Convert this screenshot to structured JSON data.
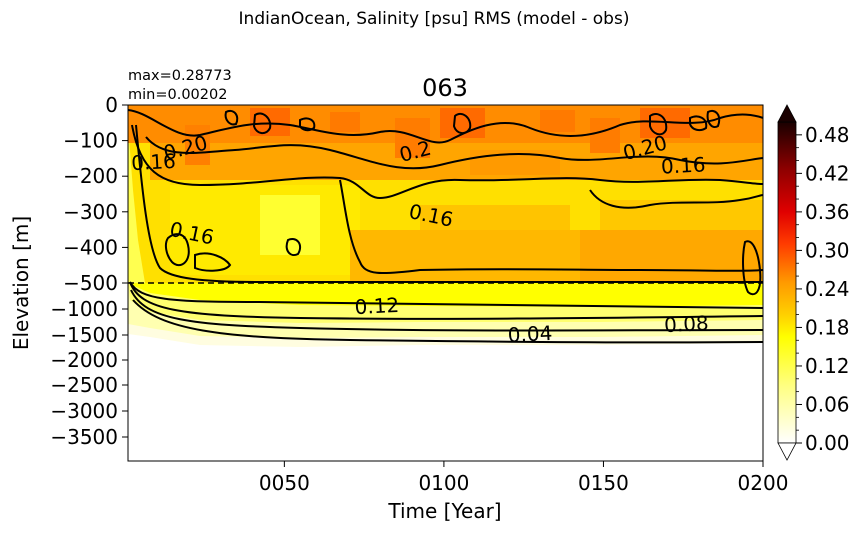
{
  "figure": {
    "suptitle": "IndianOcean, Salinity [psu] RMS (model - obs)",
    "title": "063",
    "max_text": "max=0.28773",
    "min_text": "min=0.00202"
  },
  "chart_data": {
    "type": "heatmap",
    "title": "063",
    "xlabel": "Time [Year]",
    "ylabel": "Elevation [m]",
    "xlim": [
      1,
      200
    ],
    "x_ticks": [
      {
        "value": 50,
        "label": "0050"
      },
      {
        "value": 100,
        "label": "0100"
      },
      {
        "value": 150,
        "label": "0150"
      },
      {
        "value": 200,
        "label": "0200"
      }
    ],
    "y_ticks_upper": [
      {
        "value": 0,
        "label": "0"
      },
      {
        "value": -100,
        "label": "−100"
      },
      {
        "value": -200,
        "label": "−200"
      },
      {
        "value": -300,
        "label": "−300"
      },
      {
        "value": -400,
        "label": "−400"
      },
      {
        "value": -500,
        "label": "−500"
      }
    ],
    "y_ticks_lower": [
      {
        "value": -1000,
        "label": "−1000"
      },
      {
        "value": -1500,
        "label": "−1500"
      },
      {
        "value": -2000,
        "label": "−2000"
      },
      {
        "value": -2500,
        "label": "−2500"
      },
      {
        "value": -3000,
        "label": "−3000"
      },
      {
        "value": -3500,
        "label": "−3500"
      }
    ],
    "upper_ylim": [
      -500,
      0
    ],
    "lower_ylim": [
      -4000,
      -500
    ],
    "split_depth": -500,
    "colorbar": {
      "vmin": 0.0,
      "vmax": 0.5,
      "colormap": "hot_r",
      "extend": "both",
      "ticks": [
        {
          "value": 0.0,
          "label": "0.00"
        },
        {
          "value": 0.06,
          "label": "0.06"
        },
        {
          "value": 0.12,
          "label": "0.12"
        },
        {
          "value": 0.18,
          "label": "0.18"
        },
        {
          "value": 0.24,
          "label": "0.24"
        },
        {
          "value": 0.3,
          "label": "0.30"
        },
        {
          "value": 0.36,
          "label": "0.36"
        },
        {
          "value": 0.42,
          "label": "0.42"
        },
        {
          "value": 0.48,
          "label": "0.48"
        }
      ]
    },
    "rms_stats": {
      "max": 0.28773,
      "min": 0.00202
    },
    "contour_labels": [
      {
        "text": "0.20",
        "year": 19,
        "depth": -120
      },
      {
        "text": "0.16",
        "year": 9,
        "depth": -160
      },
      {
        "text": "0.16",
        "year": 21,
        "depth": -360
      },
      {
        "text": "0.2",
        "year": 91,
        "depth": -130
      },
      {
        "text": "0.16",
        "year": 96,
        "depth": -310
      },
      {
        "text": "0.20",
        "year": 163,
        "depth": -120
      },
      {
        "text": "0.16",
        "year": 175,
        "depth": -170
      },
      {
        "text": "0.12",
        "year": 79,
        "depth": -800
      },
      {
        "text": "0.08",
        "year": 176,
        "depth": -1030
      },
      {
        "text": "0.04",
        "year": 127,
        "depth": -1330
      }
    ]
  }
}
